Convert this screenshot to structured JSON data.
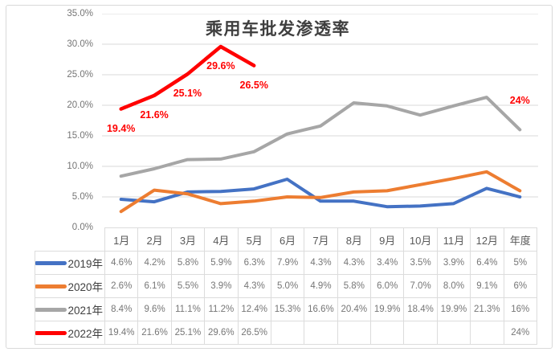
{
  "chart_data": {
    "type": "line",
    "title": "乘用车批发渗透率",
    "categories": [
      "1月",
      "2月",
      "3月",
      "4月",
      "5月",
      "6月",
      "7月",
      "8月",
      "9月",
      "10月",
      "11月",
      "12月",
      "年度"
    ],
    "y_ticks": [
      "35.0%",
      "30.0%",
      "25.0%",
      "20.0%",
      "15.0%",
      "10.0%",
      "5.0%",
      "0.0%"
    ],
    "ylim": [
      0,
      35
    ],
    "grid": "horizontal",
    "legend_position": "table-left-column",
    "series": [
      {
        "name": "2019年",
        "color": "#4472C4",
        "values": [
          4.6,
          4.2,
          5.8,
          5.9,
          6.3,
          7.9,
          4.3,
          4.3,
          3.4,
          3.5,
          3.9,
          6.4,
          5
        ],
        "display": [
          "4.6%",
          "4.2%",
          "5.8%",
          "5.9%",
          "6.3%",
          "7.9%",
          "4.3%",
          "4.3%",
          "3.4%",
          "3.5%",
          "3.9%",
          "6.4%",
          "5%"
        ]
      },
      {
        "name": "2020年",
        "color": "#ED7D31",
        "values": [
          2.6,
          6.1,
          5.5,
          3.9,
          4.3,
          5.0,
          4.9,
          5.8,
          6.0,
          7.0,
          8.0,
          9.1,
          6
        ],
        "display": [
          "2.6%",
          "6.1%",
          "5.5%",
          "3.9%",
          "4.3%",
          "5.0%",
          "4.9%",
          "5.8%",
          "6.0%",
          "7.0%",
          "8.0%",
          "9.1%",
          "6%"
        ]
      },
      {
        "name": "2021年",
        "color": "#A6A6A6",
        "values": [
          8.4,
          9.6,
          11.1,
          11.2,
          12.4,
          15.3,
          16.6,
          20.4,
          19.9,
          18.4,
          19.9,
          21.3,
          16
        ],
        "display": [
          "8.4%",
          "9.6%",
          "11.1%",
          "11.2%",
          "12.4%",
          "15.3%",
          "16.6%",
          "20.4%",
          "19.9%",
          "18.4%",
          "19.9%",
          "21.3%",
          "16%"
        ]
      },
      {
        "name": "2022年",
        "color": "#FF0000",
        "values": [
          19.4,
          21.6,
          25.1,
          29.6,
          26.5,
          null,
          null,
          null,
          null,
          null,
          null,
          null,
          24
        ],
        "display": [
          "19.4%",
          "21.6%",
          "25.1%",
          "29.6%",
          "26.5%",
          "",
          "",
          "",
          "",
          "",
          "",
          "",
          "24%"
        ]
      }
    ],
    "data_labels": [
      {
        "series": 3,
        "cat": 0,
        "text": "19.4%"
      },
      {
        "series": 3,
        "cat": 1,
        "text": "21.6%"
      },
      {
        "series": 3,
        "cat": 2,
        "text": "25.1%"
      },
      {
        "series": 3,
        "cat": 3,
        "text": "29.6%"
      },
      {
        "series": 3,
        "cat": 4,
        "text": "26.5%"
      },
      {
        "series": 3,
        "cat": 12,
        "text": "24%"
      }
    ]
  },
  "colors": {
    "grid": "#d9d9d9",
    "table_border": "#dcdcdc",
    "axis_text": "#757575",
    "value_text": "#767676",
    "month_text": "#595959",
    "year_text": "#404040",
    "title_text": "#3f3f3f"
  }
}
